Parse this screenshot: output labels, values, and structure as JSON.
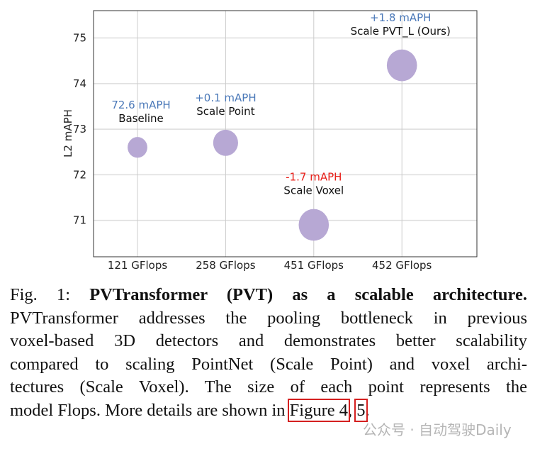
{
  "chart_data": {
    "type": "scatter",
    "categories": [
      "121 GFlops",
      "258 GFlops",
      "451 GFlops",
      "452 GFlops"
    ],
    "ylabel": "L2 mAPH",
    "xlabel": "",
    "ylim": [
      70.2,
      75.6
    ],
    "yticks": [
      71,
      72,
      73,
      74,
      75
    ],
    "grid": true,
    "points": [
      {
        "category": "121 GFlops",
        "y": 72.6,
        "label": "Baseline",
        "delta": "72.6 mAPH",
        "delta_color": "#4a78b8",
        "gflops": 121
      },
      {
        "category": "258 GFlops",
        "y": 72.7,
        "label": "Scale Point",
        "delta": "+0.1 mAPH",
        "delta_color": "#4a78b8",
        "gflops": 258
      },
      {
        "category": "451 GFlops",
        "y": 70.9,
        "label": "Scale Voxel",
        "delta": "-1.7 mAPH",
        "delta_color": "#e8201a",
        "gflops": 451
      },
      {
        "category": "452 GFlops",
        "y": 74.4,
        "label": "Scale PVT_L (Ours)",
        "delta": "+1.8 mAPH",
        "delta_color": "#4a78b8",
        "gflops": 452
      }
    ],
    "marker_color": "#b7a8d4"
  },
  "caption": {
    "prefix": "Fig. 1: ",
    "title": "PVTransformer (PVT) as a scalable architecture.",
    "lines": [
      "PVTransformer addresses the pooling bottleneck in previous",
      "voxel-based 3D detectors and demonstrates better scalability",
      "compared to scaling PointNet (Scale Point) and voxel archi-",
      "tectures (Scale Voxel). The size of each point represents the"
    ],
    "last_line_start": "model Flops. More details are shown in ",
    "ref1": "Figure 4",
    "sep": ", ",
    "ref2": "5",
    "end": "."
  },
  "watermark": "公众号 · 自动驾驶Daily"
}
